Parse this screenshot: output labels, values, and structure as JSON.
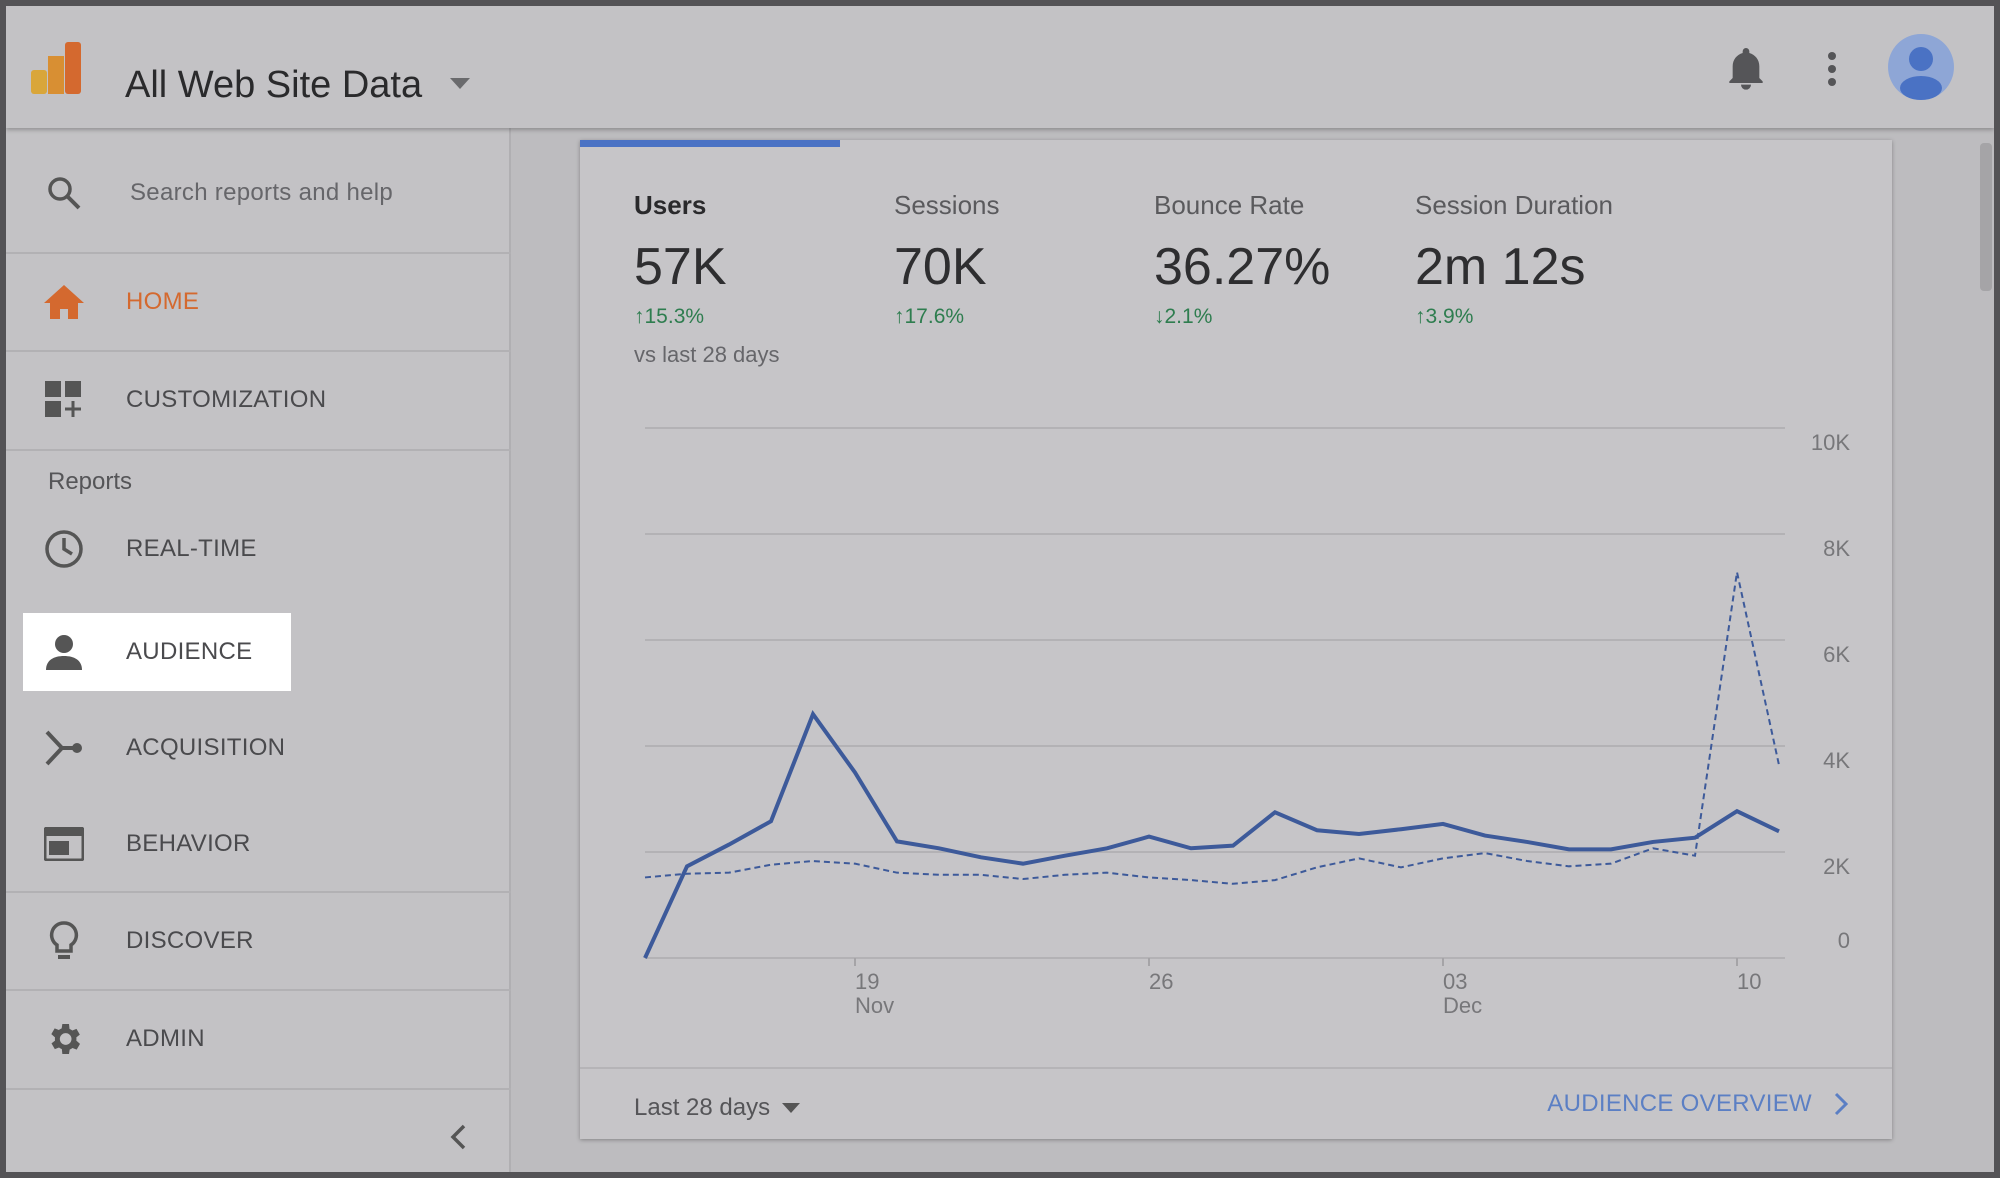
{
  "header": {
    "title": "All Web Site Data",
    "icons": [
      "analytics-logo",
      "dropdown-arrow",
      "bell-icon",
      "more-vert-icon",
      "avatar"
    ]
  },
  "sidebar": {
    "search_placeholder": "Search reports and help",
    "section_label": "Reports",
    "collapse_icon": "chevron-left-icon",
    "items": [
      {
        "label": "HOME",
        "icon": "home-icon",
        "active": true
      },
      {
        "label": "CUSTOMIZATION",
        "icon": "dashboard-add-icon"
      },
      {
        "label": "REAL-TIME",
        "icon": "clock-icon"
      },
      {
        "label": "AUDIENCE",
        "icon": "person-icon",
        "highlighted": true
      },
      {
        "label": "ACQUISITION",
        "icon": "acquisition-icon"
      },
      {
        "label": "BEHAVIOR",
        "icon": "behavior-icon"
      },
      {
        "label": "DISCOVER",
        "icon": "lightbulb-icon"
      },
      {
        "label": "ADMIN",
        "icon": "gear-icon"
      }
    ]
  },
  "metrics": [
    {
      "label": "Users",
      "value": "57K",
      "change": "↑15.3%",
      "selected": true
    },
    {
      "label": "Sessions",
      "value": "70K",
      "change": "↑17.6%"
    },
    {
      "label": "Bounce Rate",
      "value": "36.27%",
      "change": "↓2.1%"
    },
    {
      "label": "Session Duration",
      "value": "2m 12s",
      "change": "↑3.9%"
    }
  ],
  "comparison_text": "vs last 28 days",
  "colors": {
    "accent": "#4a72c4",
    "home": "#d4692f",
    "positive": "#2e7d4f",
    "line": "#3d5a9a"
  },
  "chart_data": {
    "type": "line",
    "x": [
      "Nov 14",
      "Nov 15",
      "Nov 16",
      "Nov 17",
      "Nov 18",
      "Nov 19",
      "Nov 20",
      "Nov 21",
      "Nov 22",
      "Nov 23",
      "Nov 24",
      "Nov 25",
      "Nov 26",
      "Nov 27",
      "Nov 28",
      "Nov 29",
      "Nov 30",
      "Dec 1",
      "Dec 2",
      "Dec 3",
      "Dec 4",
      "Dec 5",
      "Dec 6",
      "Dec 7",
      "Dec 8",
      "Dec 9",
      "Dec 10",
      "Dec 11"
    ],
    "series": [
      {
        "style": "solid",
        "values": [
          0,
          1730,
          2140,
          2580,
          4600,
          3500,
          2200,
          2070,
          1900,
          1780,
          1930,
          2070,
          2290,
          2070,
          2120,
          2750,
          2410,
          2340,
          2430,
          2530,
          2310,
          2190,
          2050,
          2050,
          2190,
          2270,
          2770,
          2390
        ]
      },
      {
        "style": "dashed",
        "values": [
          1520,
          1590,
          1610,
          1760,
          1830,
          1780,
          1610,
          1570,
          1570,
          1490,
          1570,
          1610,
          1520,
          1470,
          1400,
          1470,
          1710,
          1880,
          1710,
          1880,
          1980,
          1830,
          1730,
          1780,
          2070,
          1930,
          7280,
          3640
        ]
      }
    ],
    "ylim": [
      0,
      10000
    ],
    "yticks": [
      "0",
      "2K",
      "4K",
      "6K",
      "8K",
      "10K"
    ],
    "y_axis": "right",
    "grid": true,
    "xticks": [
      {
        "day": "19",
        "month": "Nov",
        "index": 5
      },
      {
        "day": "26",
        "month": "",
        "index": 12
      },
      {
        "day": "03",
        "month": "Dec",
        "index": 19
      },
      {
        "day": "10",
        "month": "",
        "index": 26
      }
    ]
  },
  "footer": {
    "date_range": "Last 28 days",
    "link": "AUDIENCE OVERVIEW"
  }
}
